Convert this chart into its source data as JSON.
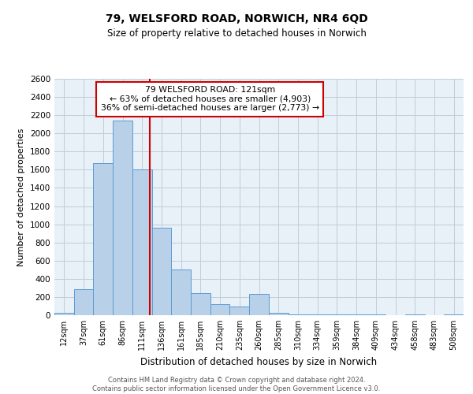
{
  "title1": "79, WELSFORD ROAD, NORWICH, NR4 6QD",
  "title2": "Size of property relative to detached houses in Norwich",
  "xlabel": "Distribution of detached houses by size in Norwich",
  "ylabel": "Number of detached properties",
  "bin_labels": [
    "12sqm",
    "37sqm",
    "61sqm",
    "86sqm",
    "111sqm",
    "136sqm",
    "161sqm",
    "185sqm",
    "210sqm",
    "235sqm",
    "260sqm",
    "285sqm",
    "310sqm",
    "334sqm",
    "359sqm",
    "384sqm",
    "409sqm",
    "434sqm",
    "458sqm",
    "483sqm",
    "508sqm"
  ],
  "bar_heights": [
    25,
    290,
    1670,
    2140,
    1600,
    960,
    500,
    245,
    120,
    95,
    235,
    28,
    12,
    10,
    8,
    5,
    5,
    0,
    5,
    0,
    12
  ],
  "bar_color": "#b8d0e8",
  "bar_edge_color": "#5b9bd5",
  "vline_x": 4.4,
  "vline_color": "#cc0000",
  "annotation_text": "79 WELSFORD ROAD: 121sqm\n← 63% of detached houses are smaller (4,903)\n36% of semi-detached houses are larger (2,773) →",
  "annotation_box_color": "#cc0000",
  "ylim": [
    0,
    2600
  ],
  "yticks": [
    0,
    200,
    400,
    600,
    800,
    1000,
    1200,
    1400,
    1600,
    1800,
    2000,
    2200,
    2400,
    2600
  ],
  "footer1": "Contains HM Land Registry data © Crown copyright and database right 2024.",
  "footer2": "Contains public sector information licensed under the Open Government Licence v3.0.",
  "bg_color": "#ffffff",
  "plot_bg_color": "#e8f0f8",
  "grid_color": "#c0cdd8"
}
